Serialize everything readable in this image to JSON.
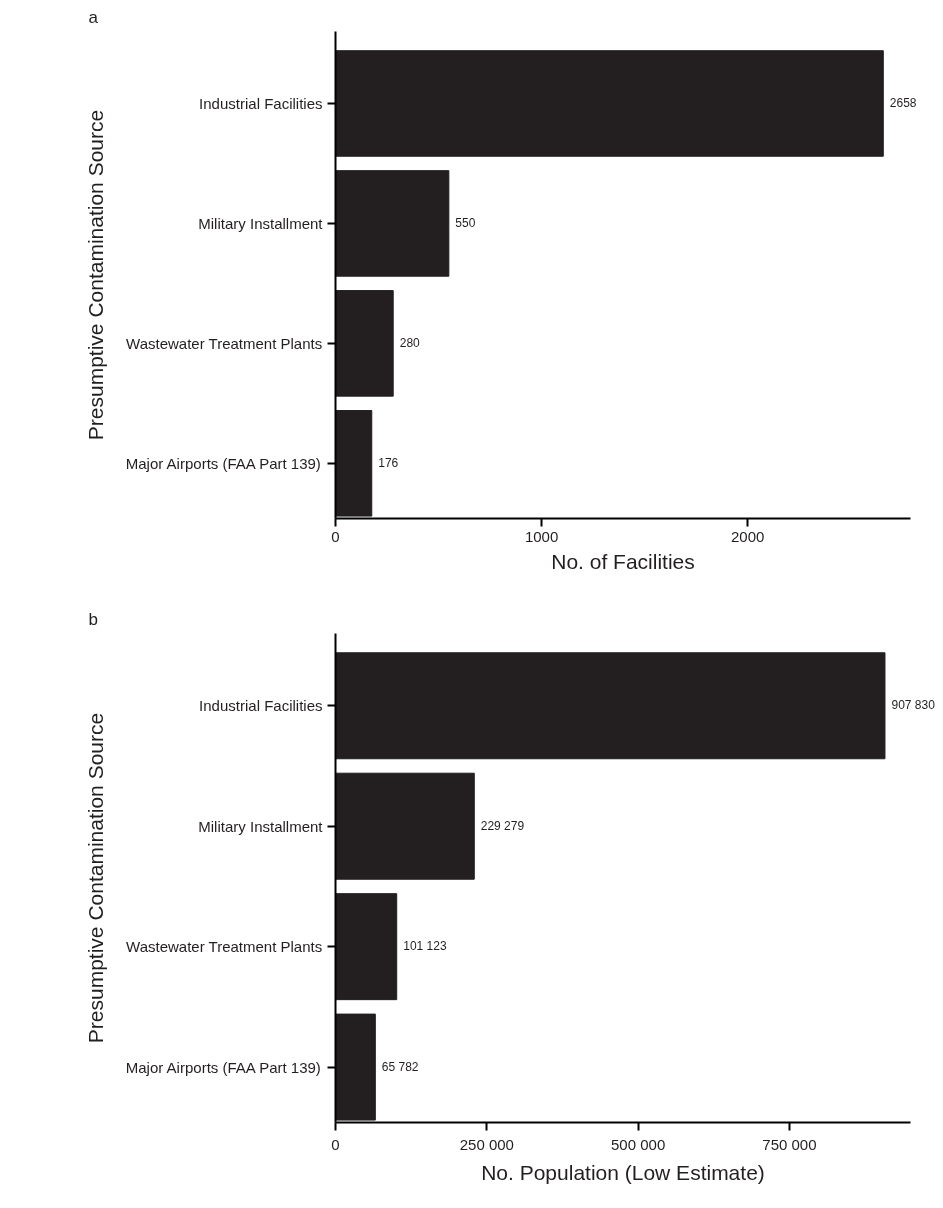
{
  "chart_data": [
    {
      "type": "bar",
      "orientation": "horizontal",
      "title": "a",
      "ylabel": "Presumptive Contamination Source",
      "xlabel": "No. of Facilities",
      "categories": [
        "Industrial Facilities",
        "Military Installment",
        "Wastewater Treatment Plants",
        "Major Airports (FAA Part 139)"
      ],
      "values": [
        2658,
        550,
        280,
        176
      ],
      "color": "#231f20",
      "value_labels": [
        "2658",
        "550",
        "280",
        "176"
      ],
      "xlim": [
        0,
        2790
      ],
      "xticks": [
        0,
        1000,
        2000
      ],
      "grid": false
    },
    {
      "type": "bar",
      "orientation": "horizontal",
      "title": "b",
      "ylabel": "Presumptive Contamination Source",
      "xlabel": "No. Population (Low Estimate)",
      "categories": [
        "Industrial Facilities",
        "Military Installment",
        "Wastewater Treatment Plants",
        "Major Airports (FAA Part 139)"
      ],
      "values": [
        907830,
        229279,
        101123,
        65782
      ],
      "color": "#231f20",
      "value_labels": [
        "907 830",
        "229 279",
        "101 123",
        "65 782"
      ],
      "xlim": [
        0,
        950000
      ],
      "xticks": [
        0,
        {
          "value": 250000,
          "label": "250 000"
        },
        {
          "value": 500000,
          "label": "500 000"
        },
        {
          "value": 750000,
          "label": "750 000"
        }
      ],
      "grid": false
    }
  ]
}
